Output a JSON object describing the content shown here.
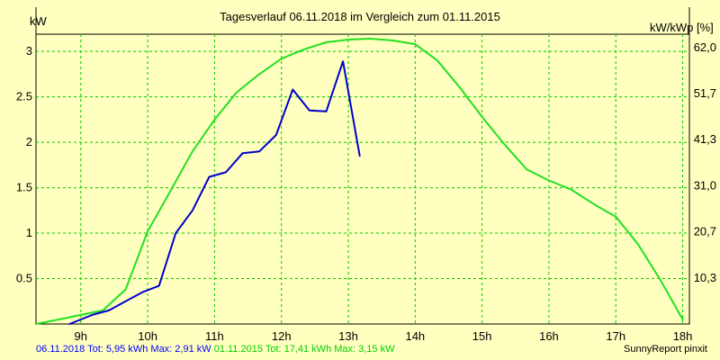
{
  "colors": {
    "background": "#ffffc0",
    "grid": "#00cc00",
    "series_2018": "#0000cc",
    "series_2015": "#22e022"
  },
  "chart_data": {
    "type": "line",
    "title": "Tagesverlauf 06.11.2018 im Vergleich zum 01.11.2015",
    "ylabel_left": "kW",
    "ylabel_right": "kW/kWp [%]",
    "xlim": [
      8.33,
      18.1
    ],
    "ylim": [
      0,
      3.15
    ],
    "x_ticks": [
      9,
      10,
      11,
      12,
      13,
      14,
      15,
      16,
      17,
      18
    ],
    "x_tick_labels": [
      "9h",
      "10h",
      "11h",
      "12h",
      "13h",
      "14h",
      "15h",
      "16h",
      "17h",
      "18h"
    ],
    "y_ticks": [
      0.5,
      1,
      1.5,
      2,
      2.5,
      3
    ],
    "y_tick_labels": [
      "0.5",
      "1",
      "1.5",
      "2",
      "2.5",
      "3"
    ],
    "y2_ticks": [
      0.505,
      1.015,
      1.52,
      2.03,
      2.535,
      3.04
    ],
    "y2_tick_labels": [
      "10,3",
      "20,7",
      "31,0",
      "41,3",
      "51,7",
      "62,0"
    ],
    "grid": true,
    "series": [
      {
        "name": "06.11.2018",
        "color": "#0000cc",
        "x": [
          8.83,
          9.0,
          9.17,
          9.42,
          9.67,
          9.92,
          10.17,
          10.42,
          10.67,
          10.92,
          11.17,
          11.42,
          11.67,
          11.92,
          12.17,
          12.42,
          12.67,
          12.92,
          13.17
        ],
        "y": [
          0.0,
          0.05,
          0.1,
          0.15,
          0.25,
          0.35,
          0.42,
          1.0,
          1.25,
          1.62,
          1.67,
          1.88,
          1.9,
          2.08,
          2.58,
          2.35,
          2.34,
          2.89,
          1.85
        ]
      },
      {
        "name": "01.11.2015",
        "color": "#22e022",
        "x": [
          8.33,
          8.67,
          9.0,
          9.33,
          9.67,
          10.0,
          10.33,
          10.67,
          11.0,
          11.33,
          11.67,
          12.0,
          12.33,
          12.67,
          13.0,
          13.33,
          13.67,
          14.0,
          14.33,
          14.67,
          15.0,
          15.33,
          15.67,
          16.0,
          16.33,
          16.67,
          17.0,
          17.33,
          17.67,
          18.0
        ],
        "y": [
          0.0,
          0.05,
          0.1,
          0.15,
          0.38,
          1.02,
          1.45,
          1.9,
          2.25,
          2.55,
          2.75,
          2.92,
          3.02,
          3.1,
          3.13,
          3.14,
          3.12,
          3.08,
          2.9,
          2.6,
          2.28,
          1.98,
          1.7,
          1.58,
          1.48,
          1.32,
          1.18,
          0.88,
          0.48,
          0.05
        ]
      }
    ]
  },
  "footer": {
    "series_2018_label": "06.11.2018 Tot: 5,95 kWh Max: 2,91 kW",
    "series_2015_label": "01.11.2015 Tot: 17,41 kWh Max: 3,15 kW",
    "brand": "SunnyReport pinxit"
  }
}
